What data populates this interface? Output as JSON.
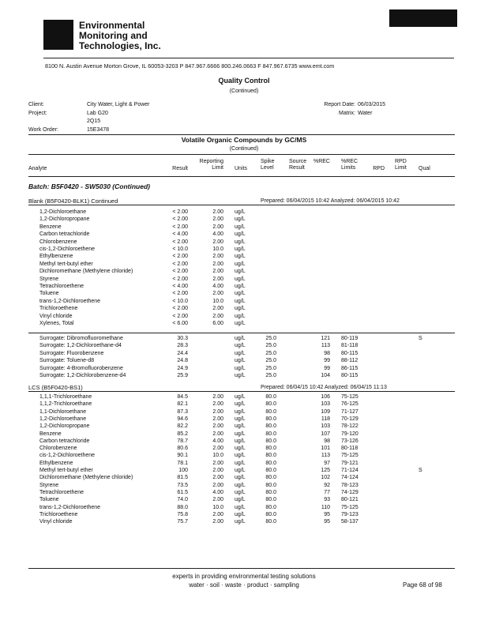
{
  "header": {
    "company": [
      "Environmental",
      "Monitoring and",
      "Technologies, Inc."
    ],
    "address": "8100 N. Austin Avenue    Morton Grove, IL 60053-3203    P 847.967.6666    800.246.0663    F 847.967.6735    www.emt.com"
  },
  "report": {
    "title": "Quality Control",
    "subtitle": "(Continued)",
    "info": {
      "client_label": "Client:",
      "client": "City Water, Light & Power",
      "project_label": "Project:",
      "project": [
        "Lab G20",
        "2Q15"
      ],
      "work_order_label": "Work Order:",
      "work_order": "15E3478",
      "report_date_label": "Report Date:",
      "report_date": "06/03/2015",
      "matrix_label": "Matrix:",
      "matrix": "Water"
    }
  },
  "section": {
    "title": "Volatile Organic Compounds by GC/MS",
    "subtitle": "(Continued)",
    "columns": [
      "Analyte",
      "Result",
      "Reporting Limit",
      "Units",
      "Spike Level",
      "Source Result",
      "%REC",
      "%REC Limits",
      "RPD",
      "RPD Limit",
      "Qual"
    ],
    "batch": "Batch: B5F0420 - SW5030 (Continued)",
    "blank": {
      "title": "Blank (B5F0420-BLK1) Continued",
      "prepared": "Prepared: 06/04/2015 10:42  Analyzed: 06/04/2015 10:42",
      "rows": [
        {
          "analyte": "1,2-Dichloroethane",
          "result": "< 2.00",
          "limit": "2.00",
          "units": "ug/L"
        },
        {
          "analyte": "1,2-Dichloropropane",
          "result": "< 2.00",
          "limit": "2.00",
          "units": "ug/L"
        },
        {
          "analyte": "Benzene",
          "result": "< 2.00",
          "limit": "2.00",
          "units": "ug/L"
        },
        {
          "analyte": "Carbon tetrachloride",
          "result": "< 4.00",
          "limit": "4.00",
          "units": "ug/L"
        },
        {
          "analyte": "Chlorobenzene",
          "result": "< 2.00",
          "limit": "2.00",
          "units": "ug/L"
        },
        {
          "analyte": "cis-1,2-Dichloroethene",
          "result": "< 10.0",
          "limit": "10.0",
          "units": "ug/L"
        },
        {
          "analyte": "Ethylbenzene",
          "result": "< 2.00",
          "limit": "2.00",
          "units": "ug/L"
        },
        {
          "analyte": "Methyl tert-butyl ether",
          "result": "< 2.00",
          "limit": "2.00",
          "units": "ug/L"
        },
        {
          "analyte": "Dichloromethane (Methylene chloride)",
          "result": "< 2.00",
          "limit": "2.00",
          "units": "ug/L"
        },
        {
          "analyte": "Styrene",
          "result": "< 2.00",
          "limit": "2.00",
          "units": "ug/L"
        },
        {
          "analyte": "Tetrachloroethene",
          "result": "< 4.00",
          "limit": "4.00",
          "units": "ug/L"
        },
        {
          "analyte": "Toluene",
          "result": "< 2.00",
          "limit": "2.00",
          "units": "ug/L"
        },
        {
          "analyte": "trans-1,2-Dichloroethene",
          "result": "< 10.0",
          "limit": "10.0",
          "units": "ug/L"
        },
        {
          "analyte": "Trichloroethene",
          "result": "< 2.00",
          "limit": "2.00",
          "units": "ug/L"
        },
        {
          "analyte": "Vinyl chloride",
          "result": "< 2.00",
          "limit": "2.00",
          "units": "ug/L"
        },
        {
          "analyte": "Xylenes, Total",
          "result": "< 6.00",
          "limit": "6.00",
          "units": "ug/L"
        }
      ],
      "surrogates": [
        {
          "analyte": "Surrogate: Dibromofluoromethane",
          "result": "30.3",
          "units": "ug/L",
          "spike": "25.0",
          "rec": "121",
          "limits": "80-119",
          "qual": "S"
        },
        {
          "analyte": "Surrogate: 1,2-Dichloroethane-d4",
          "result": "28.3",
          "units": "ug/L",
          "spike": "25.0",
          "rec": "113",
          "limits": "81-118"
        },
        {
          "analyte": "Surrogate: Fluorobenzene",
          "result": "24.4",
          "units": "ug/L",
          "spike": "25.0",
          "rec": "98",
          "limits": "80-115"
        },
        {
          "analyte": "Surrogate: Toluene-d8",
          "result": "24.8",
          "units": "ug/L",
          "spike": "25.0",
          "rec": "99",
          "limits": "88-112"
        },
        {
          "analyte": "Surrogate: 4-Bromofluorobenzene",
          "result": "24.9",
          "units": "ug/L",
          "spike": "25.0",
          "rec": "99",
          "limits": "86-115"
        },
        {
          "analyte": "Surrogate: 1,2-Dichlorobenzene-d4",
          "result": "25.9",
          "units": "ug/L",
          "spike": "25.0",
          "rec": "104",
          "limits": "80-115"
        }
      ]
    },
    "lcs": {
      "title": "LCS (B5F0420-BS1)",
      "prepared": "Prepared: 06/04/15 10:42  Analyzed: 06/04/15 11:13",
      "rows": [
        {
          "analyte": "1,1,1-Trichloroethane",
          "result": "84.5",
          "limit": "2.00",
          "units": "ug/L",
          "spike": "80.0",
          "rec": "106",
          "limits": "75-125"
        },
        {
          "analyte": "1,1,2-Trichloroethane",
          "result": "82.1",
          "limit": "2.00",
          "units": "ug/L",
          "spike": "80.0",
          "rec": "103",
          "limits": "76-125"
        },
        {
          "analyte": "1,1-Dichloroethane",
          "result": "87.3",
          "limit": "2.00",
          "units": "ug/L",
          "spike": "80.0",
          "rec": "109",
          "limits": "71-127"
        },
        {
          "analyte": "1,2-Dichloroethane",
          "result": "94.6",
          "limit": "2.00",
          "units": "ug/L",
          "spike": "80.0",
          "rec": "118",
          "limits": "70-129"
        },
        {
          "analyte": "1,2-Dichloropropane",
          "result": "82.2",
          "limit": "2.00",
          "units": "ug/L",
          "spike": "80.0",
          "rec": "103",
          "limits": "78-122"
        },
        {
          "analyte": "Benzene",
          "result": "85.2",
          "limit": "2.00",
          "units": "ug/L",
          "spike": "80.0",
          "rec": "107",
          "limits": "79-120"
        },
        {
          "analyte": "Carbon tetrachloride",
          "result": "78.7",
          "limit": "4.00",
          "units": "ug/L",
          "spike": "80.0",
          "rec": "98",
          "limits": "73-126"
        },
        {
          "analyte": "Chlorobenzene",
          "result": "80.6",
          "limit": "2.00",
          "units": "ug/L",
          "spike": "80.0",
          "rec": "101",
          "limits": "80-118"
        },
        {
          "analyte": "cis-1,2-Dichloroethene",
          "result": "90.1",
          "limit": "10.0",
          "units": "ug/L",
          "spike": "80.0",
          "rec": "113",
          "limits": "75-125"
        },
        {
          "analyte": "Ethylbenzene",
          "result": "78.1",
          "limit": "2.00",
          "units": "ug/L",
          "spike": "80.0",
          "rec": "97",
          "limits": "79-121"
        },
        {
          "analyte": "Methyl tert-butyl ether",
          "result": "100",
          "limit": "2.00",
          "units": "ug/L",
          "spike": "80.0",
          "rec": "125",
          "limits": "71-124",
          "qual": "S"
        },
        {
          "analyte": "Dichloromethane (Methylene chloride)",
          "result": "81.5",
          "limit": "2.00",
          "units": "ug/L",
          "spike": "80.0",
          "rec": "102",
          "limits": "74-124"
        },
        {
          "analyte": "Styrene",
          "result": "73.5",
          "limit": "2.00",
          "units": "ug/L",
          "spike": "80.0",
          "rec": "92",
          "limits": "78-123"
        },
        {
          "analyte": "Tetrachloroethene",
          "result": "61.5",
          "limit": "4.00",
          "units": "ug/L",
          "spike": "80.0",
          "rec": "77",
          "limits": "74-129"
        },
        {
          "analyte": "Toluene",
          "result": "74.0",
          "limit": "2.00",
          "units": "ug/L",
          "spike": "80.0",
          "rec": "93",
          "limits": "80-121"
        },
        {
          "analyte": "trans-1,2-Dichloroethene",
          "result": "88.0",
          "limit": "10.0",
          "units": "ug/L",
          "spike": "80.0",
          "rec": "110",
          "limits": "75-125"
        },
        {
          "analyte": "Trichloroethene",
          "result": "75.8",
          "limit": "2.00",
          "units": "ug/L",
          "spike": "80.0",
          "rec": "95",
          "limits": "79-123"
        },
        {
          "analyte": "Vinyl chloride",
          "result": "75.7",
          "limit": "2.00",
          "units": "ug/L",
          "spike": "80.0",
          "rec": "95",
          "limits": "58-137"
        }
      ]
    }
  },
  "footer": {
    "tagline": "experts in providing environmental testing solutions",
    "services": "water  ·  soil  ·  waste  ·  product  ·  sampling",
    "page": "Page 68 of 98"
  }
}
